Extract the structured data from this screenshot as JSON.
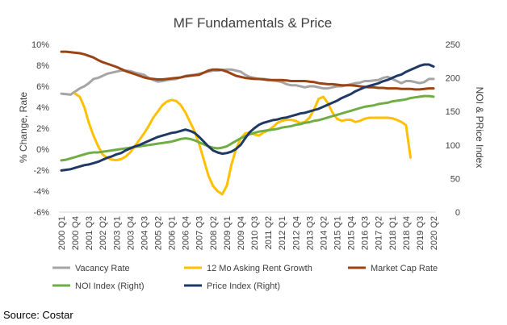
{
  "source_note": "Source: Costar",
  "chart_data": {
    "type": "line",
    "title": "MF Fundamentals & Price",
    "ylabel_left": "% Change, Rate",
    "ylabel_right": "NOI & PRice Index",
    "ylim_left": [
      -6,
      10
    ],
    "ylim_right": [
      0,
      250
    ],
    "yticks_left": [
      "-6%",
      "-4%",
      "-2%",
      "0%",
      "2%",
      "4%",
      "6%",
      "8%",
      "10%"
    ],
    "yticks_right": [
      "0",
      "50",
      "100",
      "150",
      "200",
      "250"
    ],
    "x": [
      "2000 Q1",
      "2000 Q2",
      "2000 Q3",
      "2000 Q4",
      "2001 Q1",
      "2001 Q2",
      "2001 Q3",
      "2001 Q4",
      "2002 Q1",
      "2002 Q2",
      "2002 Q3",
      "2002 Q4",
      "2003 Q1",
      "2003 Q2",
      "2003 Q3",
      "2003 Q4",
      "2004 Q1",
      "2004 Q2",
      "2004 Q3",
      "2004 Q4",
      "2005 Q1",
      "2005 Q2",
      "2005 Q3",
      "2005 Q4",
      "2006 Q1",
      "2006 Q2",
      "2006 Q3",
      "2006 Q4",
      "2007 Q1",
      "2007 Q2",
      "2007 Q3",
      "2007 Q4",
      "2008 Q1",
      "2008 Q2",
      "2008 Q3",
      "2008 Q4",
      "2009 Q1",
      "2009 Q2",
      "2009 Q3",
      "2009 Q4",
      "2010 Q1",
      "2010 Q2",
      "2010 Q3",
      "2010 Q4",
      "2011 Q1",
      "2011 Q2",
      "2011 Q3",
      "2011 Q4",
      "2012 Q1",
      "2012 Q2",
      "2012 Q3",
      "2012 Q4",
      "2013 Q1",
      "2013 Q2",
      "2013 Q3",
      "2013 Q4",
      "2014 Q1",
      "2014 Q2",
      "2014 Q3",
      "2014 Q4",
      "2015 Q1",
      "2015 Q2",
      "2015 Q3",
      "2015 Q4",
      "2016 Q1",
      "2016 Q2",
      "2016 Q3",
      "2016 Q4",
      "2017 Q1",
      "2017 Q2",
      "2017 Q3",
      "2017 Q4",
      "2018 Q1",
      "2018 Q2",
      "2018 Q3",
      "2018 Q4",
      "2019 Q1",
      "2019 Q2",
      "2019 Q3",
      "2019 Q4",
      "2020 Q1",
      "2020 Q2"
    ],
    "xtick_labels": [
      "2000 Q1",
      "2000 Q4",
      "2001 Q3",
      "2002 Q2",
      "2003 Q1",
      "2003 Q4",
      "2004 Q3",
      "2005 Q2",
      "2006 Q1",
      "2006 Q4",
      "2007 Q3",
      "2008 Q2",
      "2009 Q1",
      "2009 Q4",
      "2010 Q3",
      "2011 Q2",
      "2012 Q1",
      "2012 Q4",
      "2013 Q3",
      "2014 Q2",
      "2015 Q1",
      "2015 Q4",
      "2016 Q3",
      "2017 Q2",
      "2018 Q1",
      "2018 Q4",
      "2019 Q3",
      "2020 Q2"
    ],
    "legend_position": "bottom",
    "series": [
      {
        "name": "Vacancy Rate",
        "axis": "left",
        "color": "#a5a5a5",
        "values": [
          5.3,
          5.25,
          5.2,
          5.5,
          5.8,
          6.0,
          6.3,
          6.7,
          6.8,
          7.0,
          7.2,
          7.3,
          7.4,
          7.5,
          7.5,
          7.45,
          7.3,
          7.2,
          7.1,
          6.8,
          6.6,
          6.45,
          6.5,
          6.6,
          6.65,
          6.7,
          6.85,
          7.0,
          7.05,
          7.1,
          7.2,
          7.3,
          7.4,
          7.5,
          7.5,
          7.55,
          7.6,
          7.6,
          7.5,
          7.4,
          7.1,
          6.9,
          6.8,
          6.7,
          6.7,
          6.65,
          6.55,
          6.5,
          6.4,
          6.2,
          6.1,
          6.1,
          6.0,
          5.9,
          6.0,
          6.0,
          5.9,
          5.8,
          5.8,
          5.9,
          6.0,
          6.0,
          6.1,
          6.2,
          6.3,
          6.35,
          6.5,
          6.5,
          6.55,
          6.6,
          6.8,
          6.9,
          6.7,
          6.5,
          6.3,
          6.5,
          6.5,
          6.4,
          6.3,
          6.4,
          6.7,
          6.7
        ]
      },
      {
        "name": "12 Mo Asking Rent Growth",
        "axis": "left",
        "color": "#ffc000",
        "values": [
          null,
          null,
          null,
          5.3,
          5.0,
          4.0,
          2.5,
          1.3,
          0.3,
          -0.5,
          -0.85,
          -1.0,
          -1.05,
          -0.95,
          -0.7,
          -0.3,
          0.3,
          0.9,
          1.5,
          2.2,
          3.0,
          3.6,
          4.2,
          4.55,
          4.7,
          4.6,
          4.2,
          3.5,
          2.6,
          1.7,
          0.5,
          -1.0,
          -2.5,
          -3.5,
          -4.0,
          -4.3,
          -3.5,
          -1.5,
          0.0,
          1.0,
          1.5,
          1.6,
          1.4,
          1.3,
          1.6,
          1.8,
          2.1,
          2.5,
          2.7,
          2.8,
          2.8,
          2.7,
          2.5,
          2.6,
          3.0,
          3.8,
          4.8,
          5.0,
          4.4,
          3.5,
          2.9,
          2.7,
          2.8,
          2.8,
          2.6,
          2.7,
          2.9,
          3.0,
          3.0,
          3.0,
          3.0,
          3.0,
          2.95,
          2.8,
          2.6,
          2.3,
          -0.8,
          null,
          null,
          null,
          null,
          null
        ]
      },
      {
        "name": "Market Cap Rate",
        "axis": "left",
        "color": "#9c4313",
        "values": [
          9.3,
          9.3,
          9.25,
          9.2,
          9.15,
          9.05,
          8.9,
          8.75,
          8.5,
          8.3,
          8.15,
          8.0,
          7.85,
          7.65,
          7.45,
          7.3,
          7.15,
          7.0,
          6.85,
          6.75,
          6.7,
          6.65,
          6.65,
          6.7,
          6.75,
          6.8,
          6.85,
          6.95,
          7.0,
          7.05,
          7.1,
          7.3,
          7.5,
          7.6,
          7.6,
          7.55,
          7.4,
          7.2,
          7.0,
          6.9,
          6.8,
          6.75,
          6.7,
          6.7,
          6.65,
          6.6,
          6.6,
          6.6,
          6.6,
          6.55,
          6.5,
          6.5,
          6.5,
          6.5,
          6.45,
          6.4,
          6.3,
          6.25,
          6.2,
          6.2,
          6.15,
          6.1,
          6.1,
          6.1,
          6.05,
          6.0,
          5.95,
          5.9,
          5.9,
          5.85,
          5.85,
          5.8,
          5.8,
          5.8,
          5.75,
          5.75,
          5.75,
          5.7,
          5.7,
          5.75,
          5.8,
          5.8
        ]
      },
      {
        "name": "NOI Index (Right)",
        "axis": "right",
        "color": "#70ad47",
        "values": [
          77,
          78,
          80,
          82,
          84,
          86,
          88,
          89,
          89,
          90,
          91,
          92,
          93,
          94,
          95,
          96,
          97,
          98,
          99,
          100,
          101,
          102,
          103,
          104,
          105,
          107,
          109,
          110,
          109,
          107,
          104,
          101,
          98,
          96,
          95,
          96,
          98,
          102,
          106,
          110,
          113,
          116,
          118,
          120,
          121,
          122,
          123,
          124,
          126,
          127,
          128,
          130,
          131,
          133,
          134,
          136,
          137,
          139,
          141,
          143,
          145,
          147,
          149,
          151,
          153,
          155,
          157,
          158,
          159,
          161,
          162,
          163,
          165,
          166,
          167,
          168,
          170,
          171,
          172,
          173,
          173,
          172
        ]
      },
      {
        "name": "Price Index (Right)",
        "axis": "right",
        "color": "#203864",
        "values": [
          62,
          63,
          64,
          66,
          68,
          70,
          71,
          73,
          75,
          78,
          81,
          83,
          86,
          88,
          92,
          95,
          98,
          100,
          103,
          106,
          109,
          112,
          114,
          116,
          118,
          119,
          121,
          123,
          121,
          118,
          112,
          105,
          98,
          92,
          89,
          87,
          88,
          90,
          94,
          100,
          110,
          119,
          125,
          130,
          133,
          135,
          137,
          138,
          140,
          141,
          143,
          145,
          147,
          148,
          150,
          152,
          154,
          157,
          160,
          163,
          166,
          170,
          173,
          176,
          180,
          183,
          186,
          188,
          190,
          192,
          195,
          197,
          200,
          203,
          205,
          209,
          212,
          215,
          218,
          220,
          220,
          217
        ]
      }
    ]
  }
}
